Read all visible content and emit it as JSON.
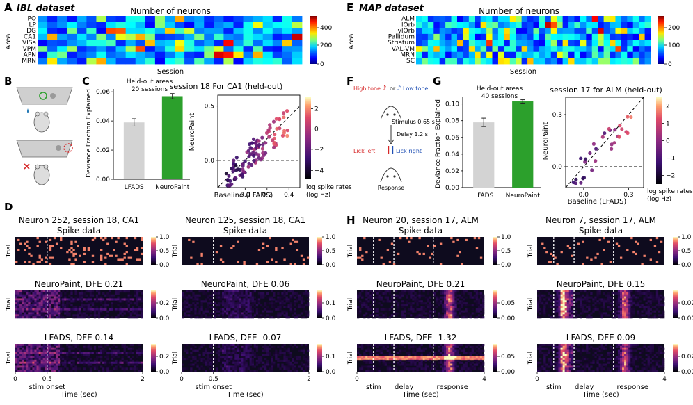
{
  "panels": {
    "A": {
      "letter": "A",
      "title": "IBL dataset",
      "heading": "Number of neurons",
      "ylabel": "Area",
      "xlabel": "Session",
      "rows": [
        "PO",
        "LP",
        "DG",
        "CA1",
        "VISa",
        "VPM",
        "APN",
        "MRN"
      ],
      "colorbar_ticks": [
        "400",
        "200",
        "0"
      ]
    },
    "E": {
      "letter": "E",
      "title": "MAP dataset",
      "heading": "Number of neurons",
      "ylabel": "Area",
      "xlabel": "Session",
      "rows": [
        "ALM",
        "lOrb",
        "vlOrb",
        "Pallidum",
        "Striatum",
        "VAL-VM",
        "MRN",
        "SC"
      ],
      "colorbar_ticks": [
        "200",
        "100",
        "0"
      ]
    },
    "B": {
      "letter": "B"
    },
    "C": {
      "letter": "C",
      "bar_label": [
        "Held-out areas",
        "20 sessions"
      ],
      "ylabel": "Deviance Fraction Explained",
      "bars": [
        {
          "name": "LFADS",
          "value": 0.039,
          "color": "#d3d3d3"
        },
        {
          "name": "NeuroPaint",
          "value": 0.057,
          "color": "#2ca02c"
        }
      ],
      "yticks": [
        "0.00",
        "0.02",
        "0.04",
        "0.06"
      ],
      "scatter_title": "session 18 For CA1 (held-out)",
      "scatter_xlabel": "Baseline (LFADS)",
      "scatter_ylabel": "NeuroPaint",
      "scatter_xticks": [
        "0.0",
        "0.2",
        "0.4"
      ],
      "scatter_yticks": [
        "0.0",
        "0.5"
      ],
      "cbar_ticks": [
        "2",
        "0",
        "−2",
        "−4"
      ],
      "cbar_label": [
        "log spike rates",
        "(log Hz)"
      ]
    },
    "F": {
      "letter": "F",
      "high_tone": "High tone",
      "or": "or",
      "low_tone": "Low tone",
      "stimulus": "Stimulus 0.65 s",
      "delay": "Delay 1.2 s",
      "lick_left": "Lick left",
      "lick_right": "Lick right",
      "response": "Response"
    },
    "G": {
      "letter": "G",
      "bar_label": [
        "Held-out areas",
        "40 sessions"
      ],
      "ylabel": "Deviance Fraction Explained",
      "bars": [
        {
          "name": "LFADS",
          "value": 0.078,
          "color": "#d3d3d3"
        },
        {
          "name": "NeuroPaint",
          "value": 0.103,
          "color": "#2ca02c"
        }
      ],
      "yticks": [
        "0.00",
        "0.02",
        "0.04",
        "0.06",
        "0.08",
        "0.10"
      ],
      "scatter_title": "session 17 for ALM (held-out)",
      "scatter_xlabel": "Baseline (LFADS)",
      "scatter_ylabel": "NeuroPaint",
      "scatter_xticks": [
        "0.0",
        "0.3"
      ],
      "scatter_yticks": [
        "0.0",
        "0.3"
      ],
      "cbar_ticks": [
        "2",
        "1",
        "0",
        "−1",
        "−2"
      ],
      "cbar_label": [
        "log spike rates",
        "(log Hz)"
      ]
    },
    "D": {
      "letter": "D",
      "xticks": [
        "0",
        "0.5",
        "2"
      ],
      "xlabel": "Time (sec)",
      "onset_label": "stim onset",
      "trial_label": "Trial",
      "columns": [
        {
          "title": "Neuron 252, session 18, CA1",
          "rows": [
            {
              "title": "Spike data",
              "cbar": [
                "1.0",
                "0.5",
                "0.0"
              ]
            },
            {
              "title": "NeuroPaint, DFE 0.21",
              "cbar": [
                "0.2",
                "0.0"
              ]
            },
            {
              "title": "LFADS, DFE 0.14",
              "cbar": [
                "0.2",
                "0.0"
              ]
            }
          ]
        },
        {
          "title": "Neuron 125, session 18, CA1",
          "rows": [
            {
              "title": "Spike data",
              "cbar": [
                "1.0",
                "0.5",
                "0.0"
              ]
            },
            {
              "title": "NeuroPaint, DFE 0.06",
              "cbar": [
                "0.1",
                "0.0"
              ]
            },
            {
              "title": "LFADS, DFE -0.07",
              "cbar": [
                "0.1",
                "0.0"
              ]
            }
          ]
        }
      ]
    },
    "H": {
      "letter": "H",
      "xticks": [
        "0",
        "4"
      ],
      "xlabel": "Time (sec)",
      "phase_labels": [
        "stim",
        "delay",
        "response"
      ],
      "trial_label": "Trial",
      "columns": [
        {
          "title": "Neuron 20, session 17, ALM",
          "rows": [
            {
              "title": "Spike data",
              "cbar": [
                "1.0",
                "0.5",
                "0.0"
              ]
            },
            {
              "title": "NeuroPaint, DFE 0.21",
              "cbar": [
                "0.05",
                "0.00"
              ]
            },
            {
              "title": "LFADS, DFE -1.32",
              "cbar": [
                "0.05",
                "0.00"
              ]
            }
          ]
        },
        {
          "title": "Neuron 7, session 17, ALM",
          "rows": [
            {
              "title": "Spike data",
              "cbar": [
                "1.0",
                "0.5",
                "0.0"
              ]
            },
            {
              "title": "NeuroPaint, DFE 0.15",
              "cbar": [
                "0.02",
                "0.00"
              ]
            },
            {
              "title": "LFADS, DFE 0.09",
              "cbar": [
                "0.02",
                "0.00"
              ]
            }
          ]
        }
      ]
    }
  }
}
